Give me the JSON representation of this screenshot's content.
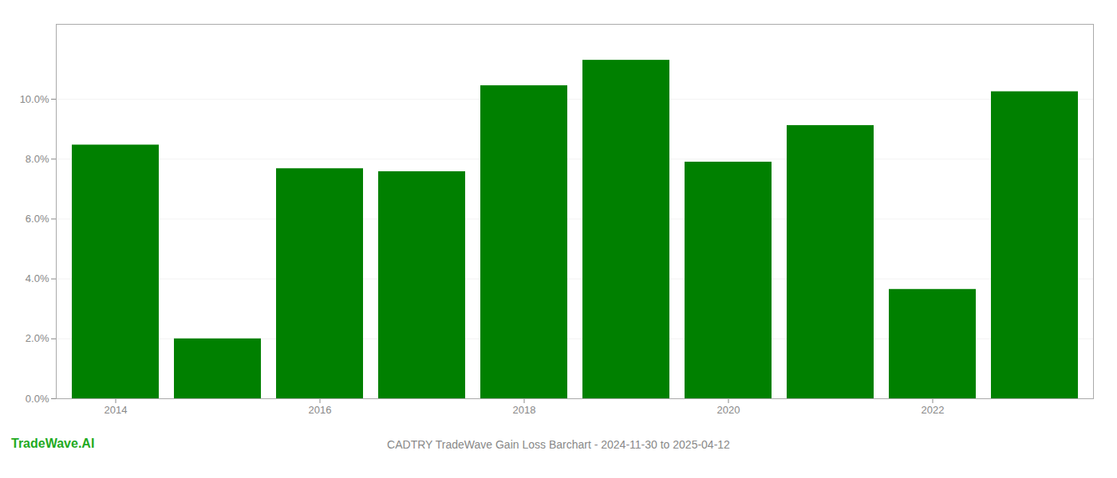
{
  "chart_data": {
    "type": "bar",
    "title": "CADTRY TradeWave Gain Loss Barchart - 2024-11-30 to 2025-04-12",
    "annotations": [
      {
        "text": "TradeWave.AI",
        "color": "#22aa22"
      }
    ],
    "categories": [
      "2014",
      null,
      "2016",
      null,
      "2018",
      null,
      "2020",
      null,
      "2022",
      null
    ],
    "values": [
      0.0847,
      0.02,
      0.0768,
      0.0758,
      0.1045,
      0.113,
      0.079,
      0.0912,
      0.0365,
      0.1025
    ],
    "color": "#008000",
    "ylim": [
      0,
      0.125
    ],
    "yticks": [
      {
        "value": 0.0,
        "label": "0.0%"
      },
      {
        "value": 0.02,
        "label": "2.0%"
      },
      {
        "value": 0.04,
        "label": "4.0%"
      },
      {
        "value": 0.06,
        "label": "6.0%"
      },
      {
        "value": 0.08,
        "label": "8.0%"
      },
      {
        "value": 0.1,
        "label": "10.0%"
      }
    ],
    "grid": true
  }
}
